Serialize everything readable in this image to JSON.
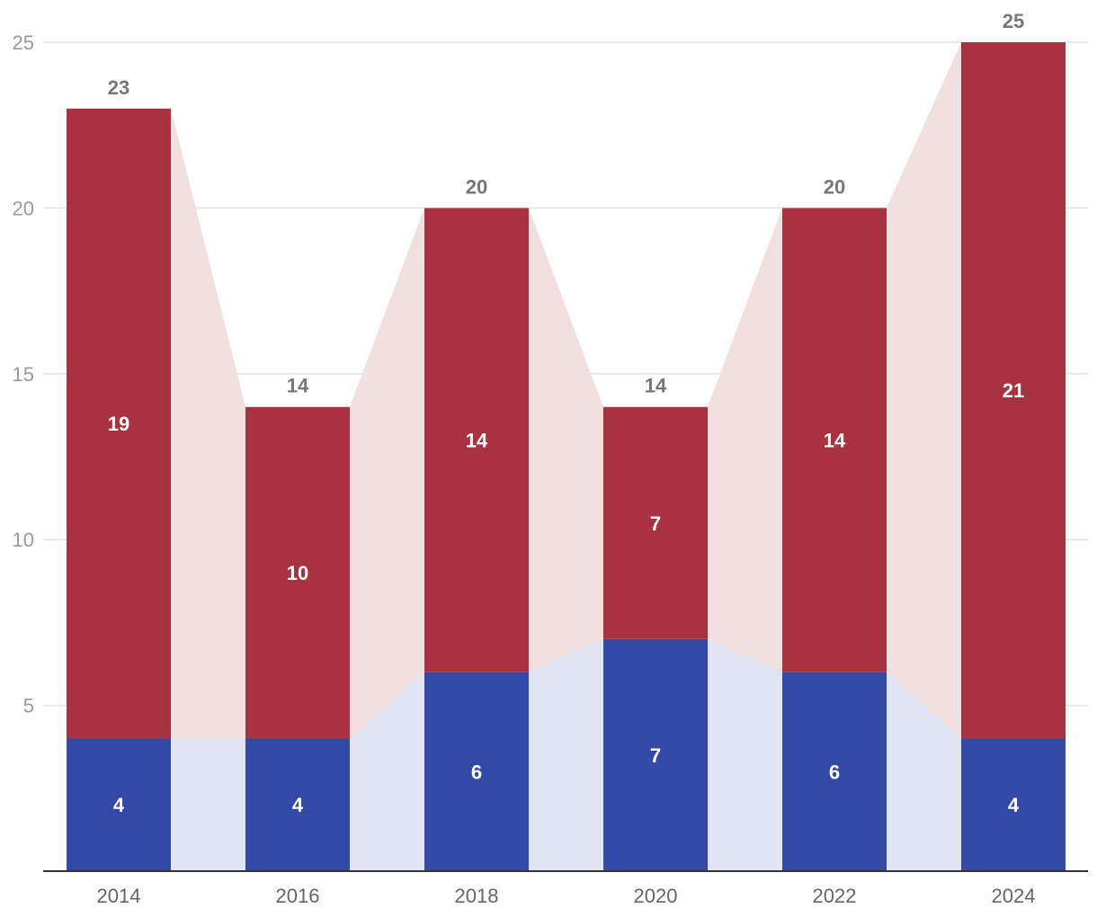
{
  "chart_data": {
    "type": "bar",
    "stacked": true,
    "categories": [
      "2014",
      "2016",
      "2018",
      "2020",
      "2022",
      "2024"
    ],
    "series": [
      {
        "values": [
          4,
          4,
          6,
          7,
          6,
          4
        ],
        "color": "#3349a8",
        "band_color": "#e1e4f3"
      },
      {
        "values": [
          19,
          10,
          14,
          7,
          14,
          21
        ],
        "color": "#a83240",
        "band_color": "#f2dfe0"
      }
    ],
    "totals": [
      23,
      14,
      20,
      14,
      20,
      25
    ],
    "y_ticks": [
      5,
      10,
      15,
      20,
      25
    ],
    "ylim": [
      0,
      25
    ],
    "grid": true,
    "title": "",
    "xlabel": "",
    "ylabel": ""
  }
}
